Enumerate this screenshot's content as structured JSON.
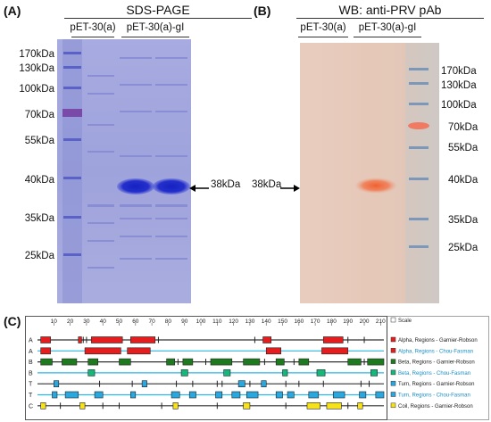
{
  "panel_a": {
    "label": "(A)",
    "title": "SDS-PAGE",
    "lanes": [
      "pET-30(a)",
      "pET-30(a)-gI"
    ],
    "markers": [
      "170kDa",
      "130kDa",
      "100kDa",
      "70kDa",
      "55kDa",
      "40kDa",
      "35kDa",
      "25kDa"
    ],
    "band_label": "38kDa"
  },
  "panel_b": {
    "label": "(B)",
    "title": "WB: anti-PRV pAb",
    "lanes": [
      "pET-30(a)",
      "pET-30(a)-gI"
    ],
    "markers": [
      "170kDa",
      "130kDa",
      "100kDa",
      "70kDa",
      "55kDa",
      "40kDa",
      "35kDa",
      "25kDa"
    ],
    "band_label": "38kDa"
  },
  "panel_c": {
    "label": "(C)",
    "axis_ticks": [
      10,
      20,
      30,
      40,
      50,
      60,
      70,
      80,
      90,
      100,
      110,
      120,
      130,
      140,
      150,
      160,
      170,
      180,
      190,
      200,
      210
    ],
    "axis_max": 212,
    "rows": [
      {
        "letter": "A",
        "name": "Alpha, Regions - Garnier-Robson",
        "color": "#e41e1e",
        "line": "#333333",
        "segments": [
          [
            2,
            8
          ],
          [
            25,
            27
          ],
          [
            33,
            52
          ],
          [
            57,
            72
          ],
          [
            138,
            143
          ],
          [
            175,
            187
          ]
        ],
        "ticks": [
          28,
          30,
          74,
          133,
          190,
          200
        ]
      },
      {
        "letter": "A",
        "name": "Alpha, Regions - Chou-Fasman",
        "color": "#e41e1e",
        "line": "#29b6e8",
        "segments": [
          [
            2,
            8
          ],
          [
            29,
            51
          ],
          [
            55,
            69
          ],
          [
            140,
            149
          ],
          [
            174,
            190
          ]
        ],
        "ticks": []
      },
      {
        "letter": "B",
        "name": "Beta, Regions - Garnier-Robson",
        "color": "#1e7a1e",
        "line": "#333333",
        "segments": [
          [
            2,
            9
          ],
          [
            15,
            24
          ],
          [
            31,
            37
          ],
          [
            50,
            57
          ],
          [
            79,
            84
          ],
          [
            89,
            95
          ],
          [
            106,
            119
          ],
          [
            126,
            136
          ],
          [
            146,
            151
          ],
          [
            160,
            166
          ],
          [
            190,
            198
          ],
          [
            202,
            212
          ]
        ],
        "ticks": [
          86,
          103,
          139,
          157,
          200
        ]
      },
      {
        "letter": "B",
        "name": "Beta, Regions - Chou-Fasman",
        "color": "#13b87a",
        "line": "#29b6e8",
        "segments": [
          [
            31,
            35
          ],
          [
            88,
            92
          ],
          [
            114,
            118
          ],
          [
            150,
            153
          ],
          [
            171,
            176
          ],
          [
            204,
            208
          ]
        ],
        "ticks": []
      },
      {
        "letter": "T",
        "name": "Turn, Regions - Garnier-Robson",
        "color": "#29a8e0",
        "line": "#333333",
        "segments": [
          [
            10,
            13
          ],
          [
            64,
            67
          ],
          [
            123,
            127
          ],
          [
            137,
            140
          ]
        ],
        "ticks": [
          38,
          58,
          85,
          95,
          110,
          113,
          130,
          152,
          160,
          175,
          198,
          203
        ]
      },
      {
        "letter": "T",
        "name": "Turn, Regions - Chou-Fasman",
        "color": "#29a8e0",
        "line": "#29b6e8",
        "segments": [
          [
            9,
            12
          ],
          [
            17,
            25
          ],
          [
            35,
            40
          ],
          [
            57,
            60
          ],
          [
            82,
            87
          ],
          [
            93,
            97
          ],
          [
            109,
            113
          ],
          [
            119,
            124
          ],
          [
            128,
            135
          ],
          [
            146,
            150
          ],
          [
            153,
            157
          ],
          [
            166,
            172
          ],
          [
            181,
            188
          ],
          [
            197,
            201
          ],
          [
            207,
            212
          ]
        ],
        "ticks": []
      },
      {
        "letter": "C",
        "name": "Coil, Regions - Garnier-Robson",
        "color": "#f5e21c",
        "line": "#333333",
        "segments": [
          [
            2,
            5
          ],
          [
            26,
            29
          ],
          [
            83,
            86
          ],
          [
            126,
            130
          ],
          [
            165,
            173
          ],
          [
            177,
            186
          ],
          [
            196,
            199
          ]
        ],
        "ticks": [
          14,
          40,
          50,
          76,
          110,
          152,
          190
        ]
      }
    ],
    "legend_scale": "Scale"
  }
}
